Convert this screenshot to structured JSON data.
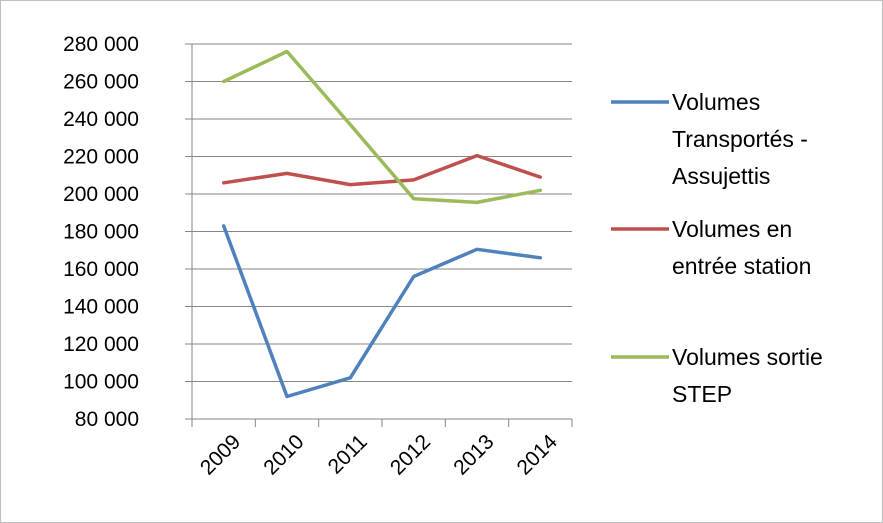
{
  "chart_data": {
    "type": "line",
    "title": "",
    "xlabel": "",
    "ylabel": "",
    "categories": [
      "2009",
      "2010",
      "2011",
      "2012",
      "2013",
      "2014"
    ],
    "ylim": [
      80000,
      280000
    ],
    "yticks": [
      "80 000",
      "100 000",
      "120 000",
      "140 000",
      "160 000",
      "180 000",
      "200 000",
      "220 000",
      "240 000",
      "260 000",
      "280 000"
    ],
    "grid": true,
    "legend_position": "right",
    "series": [
      {
        "name": "Volumes Transportés - Assujettis",
        "legend_lines": [
          "Volumes",
          "Transportés -",
          "Assujettis"
        ],
        "color": "#4f81bd",
        "values": [
          183000,
          92000,
          102000,
          156000,
          170500,
          166000
        ]
      },
      {
        "name": "Volumes en entrée station",
        "legend_lines": [
          "Volumes en",
          "entrée station"
        ],
        "color": "#c0504d",
        "values": [
          206000,
          211000,
          205000,
          207500,
          220500,
          209000
        ]
      },
      {
        "name": "Volumes sortie STEP",
        "legend_lines": [
          "Volumes sortie",
          "STEP"
        ],
        "color": "#9bbb59",
        "values": [
          260000,
          276000,
          237000,
          197500,
          195500,
          202000
        ]
      }
    ]
  }
}
